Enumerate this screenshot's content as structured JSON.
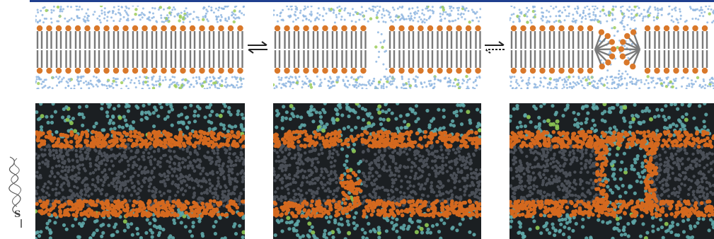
{
  "figure": {
    "states": [
      {
        "id": "intact-bilayer",
        "kind": "schematic"
      },
      {
        "id": "hydrophobic-pore",
        "kind": "schematic"
      },
      {
        "id": "hydrophilic-pore",
        "kind": "schematic"
      }
    ],
    "simulations": [
      {
        "id": "intact-bilayer-simulation"
      },
      {
        "id": "hydrophobic-pore-simulation"
      },
      {
        "id": "hydrophilic-pore-simulation"
      }
    ],
    "equilibria": [
      {
        "between": [
          "intact-bilayer",
          "hydrophobic-pore"
        ],
        "icon": "equilibrium-arrows-icon"
      },
      {
        "between": [
          "hydrophobic-pore",
          "hydrophilic-pore"
        ],
        "icon": "equilibrium-arrows-icon"
      }
    ],
    "logo": {
      "icon": "molecule-logo-icon",
      "letter": "S"
    },
    "colors": {
      "headgroup": "#d9782a",
      "tail": "#7a7a7a",
      "water": "#8fb6e0",
      "ion": "#9ccc5a",
      "sim_tail": "#4a4f57",
      "sim_head": "#d4691f",
      "sim_water": "#5fa7a8",
      "sim_ion": "#8ec955",
      "sim_background": "#1b1f22",
      "accent_bar": "#1f3f8f"
    }
  }
}
